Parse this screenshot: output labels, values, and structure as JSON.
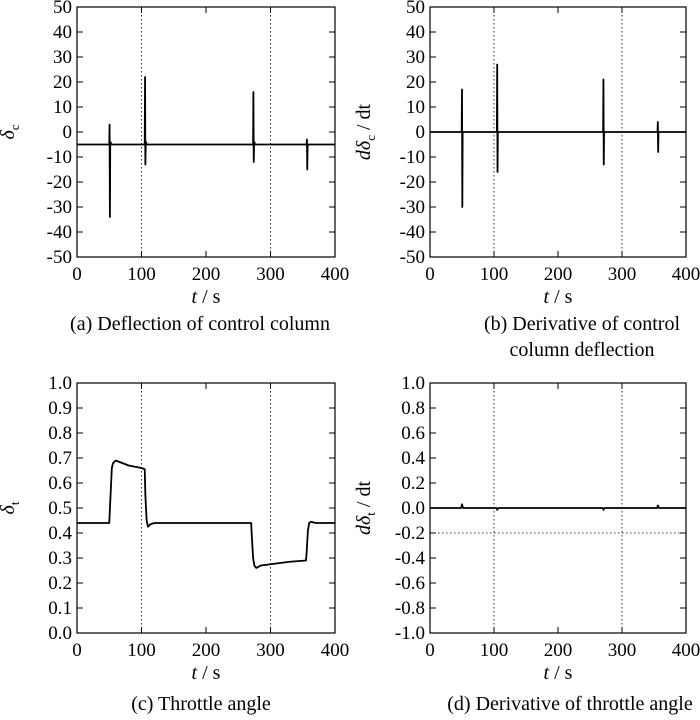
{
  "chart_data": [
    {
      "type": "line",
      "panel": "a",
      "caption": [
        "(a) Deflection of control column"
      ],
      "xlabel": "t / s",
      "ylabel": "δc",
      "xlim": [
        0,
        400
      ],
      "ylim": [
        -50,
        50
      ],
      "xticks": [
        0,
        100,
        200,
        300,
        400
      ],
      "yticks": [
        -50,
        -40,
        -30,
        -20,
        -10,
        0,
        10,
        20,
        30,
        40,
        50
      ],
      "vlines": [
        100,
        300
      ],
      "series": [
        {
          "x": [
            0,
            49,
            50,
            50.5,
            51,
            51.5,
            52,
            53,
            55,
            104,
            105,
            105.5,
            106,
            106.5,
            107,
            108,
            110,
            272,
            273,
            273.5,
            274,
            274.5,
            275,
            276,
            278,
            355,
            356,
            356.5,
            357,
            357.5,
            358,
            359,
            361,
            400
          ],
          "y": [
            -5,
            -5,
            -5,
            3,
            -34,
            -5,
            -4,
            -5,
            -5,
            -5,
            -5,
            22,
            -13,
            -5,
            -4,
            -5,
            -5,
            -5,
            -5,
            16,
            -12,
            -5,
            -4,
            -5,
            -5,
            -5,
            -5,
            -3,
            -15,
            -6,
            -5,
            -5,
            -5,
            -5
          ]
        }
      ]
    },
    {
      "type": "line",
      "panel": "b",
      "caption": [
        "(b) Derivative of control",
        "column deflection"
      ],
      "xlabel": "t / s",
      "ylabel": "dδc / dt",
      "xlim": [
        0,
        400
      ],
      "ylim": [
        -50,
        50
      ],
      "xticks": [
        0,
        100,
        200,
        300,
        400
      ],
      "yticks": [
        -50,
        -40,
        -30,
        -20,
        -10,
        0,
        10,
        20,
        30,
        40,
        50
      ],
      "vlines": [
        100,
        300
      ],
      "series": [
        {
          "x": [
            0,
            49.5,
            50,
            50.5,
            51,
            104.5,
            105,
            105.5,
            106,
            270.5,
            271,
            271.5,
            272,
            355.5,
            356,
            356.5,
            357,
            400
          ],
          "y": [
            0,
            0,
            17,
            -30,
            0,
            0,
            27,
            -16,
            0,
            0,
            21,
            -13,
            0,
            0,
            4,
            -8,
            0,
            0
          ]
        }
      ]
    },
    {
      "type": "line",
      "panel": "c",
      "caption": [
        "(c) Throttle angle"
      ],
      "xlabel": "t / s",
      "ylabel": "δt",
      "xlim": [
        0,
        400
      ],
      "ylim": [
        0,
        1.0
      ],
      "xticks": [
        0,
        100,
        200,
        300,
        400
      ],
      "yticks": [
        0,
        0.1,
        0.2,
        0.3,
        0.4,
        0.5,
        0.6,
        0.7,
        0.8,
        0.9,
        1.0
      ],
      "vlines": [
        100,
        300
      ],
      "series": [
        {
          "x": [
            0,
            50,
            52,
            54,
            56,
            60,
            70,
            80,
            90,
            100,
            105,
            106,
            108,
            110,
            114,
            120,
            150,
            200,
            250,
            270,
            271,
            273,
            275,
            278,
            285,
            300,
            330,
            355,
            356,
            358,
            360,
            363,
            370,
            400
          ],
          "y": [
            0.44,
            0.44,
            0.55,
            0.66,
            0.68,
            0.69,
            0.68,
            0.67,
            0.665,
            0.66,
            0.655,
            0.55,
            0.45,
            0.425,
            0.435,
            0.44,
            0.44,
            0.44,
            0.44,
            0.44,
            0.39,
            0.3,
            0.27,
            0.26,
            0.27,
            0.275,
            0.285,
            0.29,
            0.32,
            0.41,
            0.44,
            0.445,
            0.44,
            0.44
          ]
        }
      ]
    },
    {
      "type": "line",
      "panel": "d",
      "caption": [
        "(d) Derivative of throttle angle"
      ],
      "xlabel": "t / s",
      "ylabel": "dδt / dt",
      "xlim": [
        0,
        400
      ],
      "ylim": [
        -1.0,
        1.0
      ],
      "xticks": [
        0,
        100,
        200,
        300,
        400
      ],
      "yticks": [
        -1.0,
        -0.8,
        -0.6,
        -0.4,
        -0.2,
        0.0,
        0.2,
        0.4,
        0.6,
        0.8,
        1.0
      ],
      "vlines": [
        100,
        300
      ],
      "hlines": [
        -0.2
      ],
      "series": [
        {
          "x": [
            0,
            49,
            50,
            51,
            52,
            104,
            105,
            106,
            107,
            270,
            271,
            272,
            273,
            355,
            356,
            357,
            358,
            400
          ],
          "y": [
            0,
            0,
            0.03,
            0.01,
            0,
            0,
            -0.015,
            -0.005,
            0,
            0,
            -0.015,
            -0.005,
            0,
            0,
            0.02,
            0.01,
            0,
            0
          ]
        }
      ]
    }
  ]
}
